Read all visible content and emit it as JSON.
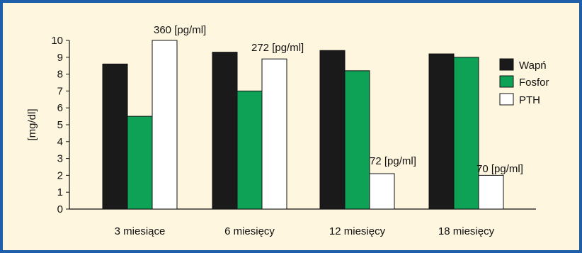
{
  "chart_data": {
    "type": "bar",
    "ylabel": "[mg/dl]",
    "ylim": [
      0,
      10
    ],
    "yticks": [
      "0",
      "1",
      "2",
      "3",
      "4",
      "5",
      "6",
      "7",
      "8",
      "9",
      "10"
    ],
    "categories": [
      "3 miesiące",
      "6 miesięcy",
      "12 miesięcy",
      "18 miesięcy"
    ],
    "series": [
      {
        "name": "Wapń",
        "values": [
          8.6,
          9.3,
          9.4,
          9.2
        ],
        "color": "#1a1a1a"
      },
      {
        "name": "Fosfor",
        "values": [
          5.5,
          7.0,
          8.2,
          9.0
        ],
        "color": "#0ea256"
      },
      {
        "name": "PTH",
        "values": [
          10.0,
          8.9,
          2.1,
          2.0
        ],
        "color": "#ffffff"
      }
    ],
    "annotations": [
      "360 [pg/ml]",
      "272 [pg/ml]",
      "72 [pg/ml]",
      "70 [pg/ml]"
    ],
    "legend_position": "right",
    "grid": false
  }
}
